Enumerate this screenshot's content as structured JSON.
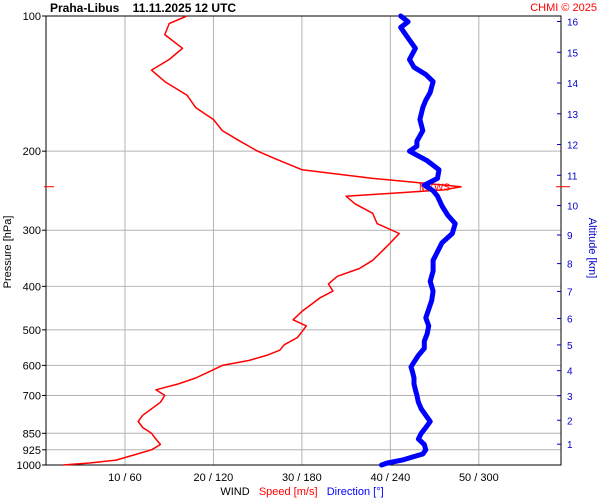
{
  "chart_data": {
    "type": "line",
    "title": "Praha-Libus    11.11.2025 12 UTC",
    "credit": "CHMI © 2025",
    "y_axis_left": {
      "label": "Pressure [hPa]",
      "scale": "log",
      "range": [
        1000,
        100
      ],
      "ticks": [
        100,
        200,
        300,
        400,
        500,
        600,
        700,
        850,
        925,
        1000
      ]
    },
    "y_axis_right": {
      "label": "Altitude [km]",
      "ticks": [
        1,
        2,
        3,
        4,
        5,
        6,
        7,
        8,
        9,
        10,
        11,
        12,
        13,
        14,
        15,
        16
      ]
    },
    "x_axis": {
      "label_parts": {
        "wind": "WIND",
        "speed": "Speed [m/s]",
        "direction": "Direction [°]"
      },
      "speed_range": [
        0,
        60
      ],
      "direction_range": [
        0,
        360
      ],
      "tick_labels": [
        "10 / 60",
        "20 / 120",
        "30 / 180",
        "40 / 240",
        "50 / 300"
      ],
      "grid_speed": [
        10,
        20,
        30,
        40,
        50
      ]
    },
    "annotation": {
      "text": "MXWS",
      "pressure": 240
    },
    "colors": {
      "speed": "#ff0000",
      "direction": "#0000ff",
      "grid": "#b4b4b4",
      "pressure_axis": "#000000",
      "altitude_axis": "#0000cc",
      "credit": "#ff0000"
    },
    "series": [
      {
        "name": "Speed [m/s]",
        "unit": "m/s",
        "points": [
          [
            1000,
            3
          ],
          [
            990,
            6
          ],
          [
            975,
            9
          ],
          [
            950,
            11
          ],
          [
            925,
            13
          ],
          [
            900,
            14
          ],
          [
            875,
            13.5
          ],
          [
            850,
            13
          ],
          [
            825,
            12
          ],
          [
            800,
            11.5
          ],
          [
            775,
            12
          ],
          [
            750,
            13
          ],
          [
            725,
            14
          ],
          [
            700,
            14.5
          ],
          [
            680,
            13.5
          ],
          [
            660,
            16
          ],
          [
            640,
            18
          ],
          [
            620,
            19.5
          ],
          [
            600,
            21
          ],
          [
            585,
            24
          ],
          [
            570,
            26
          ],
          [
            555,
            27.5
          ],
          [
            540,
            28
          ],
          [
            520,
            29.5
          ],
          [
            505,
            30
          ],
          [
            490,
            30.5
          ],
          [
            475,
            29
          ],
          [
            455,
            30
          ],
          [
            440,
            31
          ],
          [
            425,
            32
          ],
          [
            410,
            33.5
          ],
          [
            395,
            33
          ],
          [
            380,
            34
          ],
          [
            365,
            36.5
          ],
          [
            350,
            38
          ],
          [
            335,
            39
          ],
          [
            320,
            40
          ],
          [
            305,
            41
          ],
          [
            290,
            38.5
          ],
          [
            275,
            38
          ],
          [
            262,
            36
          ],
          [
            252,
            35
          ],
          [
            244,
            46
          ],
          [
            240,
            48
          ],
          [
            236,
            44
          ],
          [
            230,
            38
          ],
          [
            220,
            30
          ],
          [
            208,
            27
          ],
          [
            200,
            25
          ],
          [
            190,
            23
          ],
          [
            180,
            21
          ],
          [
            170,
            20
          ],
          [
            160,
            18
          ],
          [
            150,
            17
          ],
          [
            140,
            14.5
          ],
          [
            132,
            13
          ],
          [
            125,
            15
          ],
          [
            118,
            16.5
          ],
          [
            110,
            14.5
          ],
          [
            104,
            15
          ],
          [
            100,
            17
          ]
        ]
      },
      {
        "name": "Direction [°]",
        "unit": "°",
        "points": [
          [
            1000,
            234
          ],
          [
            990,
            238
          ],
          [
            975,
            248
          ],
          [
            960,
            255
          ],
          [
            945,
            262
          ],
          [
            925,
            264
          ],
          [
            900,
            263
          ],
          [
            875,
            259
          ],
          [
            850,
            261
          ],
          [
            825,
            264
          ],
          [
            800,
            267
          ],
          [
            775,
            264
          ],
          [
            750,
            261
          ],
          [
            725,
            259
          ],
          [
            700,
            258
          ],
          [
            680,
            257
          ],
          [
            660,
            256
          ],
          [
            640,
            256
          ],
          [
            620,
            255
          ],
          [
            605,
            254
          ],
          [
            590,
            256
          ],
          [
            570,
            259
          ],
          [
            550,
            263
          ],
          [
            530,
            263
          ],
          [
            510,
            265
          ],
          [
            490,
            266
          ],
          [
            470,
            264
          ],
          [
            450,
            266
          ],
          [
            430,
            268
          ],
          [
            410,
            269
          ],
          [
            390,
            267
          ],
          [
            370,
            269
          ],
          [
            350,
            269
          ],
          [
            335,
            272
          ],
          [
            320,
            275
          ],
          [
            305,
            282
          ],
          [
            290,
            284
          ],
          [
            278,
            279
          ],
          [
            265,
            275
          ],
          [
            252,
            272
          ],
          [
            245,
            269
          ],
          [
            238,
            263
          ],
          [
            230,
            272
          ],
          [
            220,
            273
          ],
          [
            210,
            265
          ],
          [
            200,
            253
          ],
          [
            195,
            258
          ],
          [
            190,
            258
          ],
          [
            180,
            262
          ],
          [
            170,
            260
          ],
          [
            160,
            262
          ],
          [
            154,
            264
          ],
          [
            148,
            267
          ],
          [
            140,
            269
          ],
          [
            135,
            264
          ],
          [
            130,
            256
          ],
          [
            125,
            253
          ],
          [
            118,
            257
          ],
          [
            112,
            252
          ],
          [
            106,
            247
          ],
          [
            103,
            252
          ],
          [
            100,
            247
          ]
        ]
      }
    ]
  }
}
